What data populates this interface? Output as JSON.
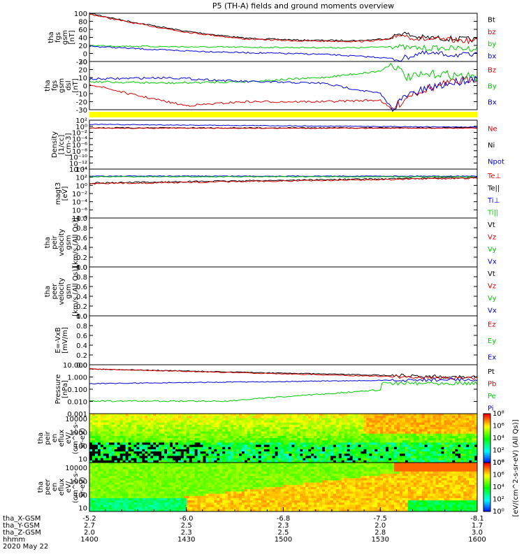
{
  "title": "P5 (TH-A) fields and ground moments overview",
  "colors": {
    "black": "#000000",
    "red": "#dd0000",
    "green": "#00cc00",
    "blue": "#0000dd",
    "yellow": "#ffff00"
  },
  "panels": [
    {
      "id": "fgs-gsm",
      "ylabel": [
        "tha",
        "fgs",
        "gsm",
        "[nT]"
      ],
      "ylim": [
        -20,
        100
      ],
      "ticks": [
        "100",
        "80",
        "60",
        "40",
        "20",
        "0",
        "-20"
      ],
      "legend": [
        {
          "text": "Bt",
          "color": "#000000"
        },
        {
          "text": "bz",
          "color": "#dd0000"
        },
        {
          "text": "by",
          "color": "#00cc00"
        },
        {
          "text": "bx",
          "color": "#0000dd"
        }
      ]
    },
    {
      "id": "fgs-gsm-dsl",
      "ylabel": [
        "tha",
        "fgs",
        "gsm",
        "dsl",
        "[nT]"
      ],
      "ylim": [
        -30,
        30
      ],
      "ticks": [
        "30",
        "20",
        "10",
        "0",
        "-10",
        "-20",
        "-30"
      ],
      "legend": [
        {
          "text": "Bz",
          "color": "#dd0000"
        },
        {
          "text": "By",
          "color": "#00cc00"
        },
        {
          "text": "Bx",
          "color": "#0000dd"
        }
      ]
    },
    {
      "id": "density",
      "ylabel": [
        "Density",
        "[1/cc]",
        "[cm-3]"
      ],
      "ticks": [
        "10²",
        "10⁰",
        "10⁻²",
        "10⁻⁴",
        "10⁻⁶",
        "10⁻⁸",
        "10⁻¹⁰",
        "10⁻¹²",
        "10⁻¹⁴"
      ],
      "legend": [
        {
          "text": "Ne",
          "color": "#dd0000"
        },
        {
          "text": "Ni",
          "color": "#000000"
        },
        {
          "text": "Npot",
          "color": "#0000dd"
        }
      ]
    },
    {
      "id": "temperature",
      "ylabel": [
        "magt3",
        "[eV]"
      ],
      "ticks": [
        "10⁴",
        "10²",
        "10⁰",
        "10⁻²",
        "10⁻⁴",
        "10⁻⁶",
        "10⁻⁸"
      ],
      "legend": [
        {
          "text": "Te⊥",
          "color": "#dd0000"
        },
        {
          "text": "Te||",
          "color": "#000000"
        },
        {
          "text": "Ti⊥",
          "color": "#0000dd"
        },
        {
          "text": "Ti||",
          "color": "#00cc00"
        }
      ]
    },
    {
      "id": "peir-velocity",
      "ylabel": [
        "tha",
        "peir",
        "velocity",
        "gsm",
        "[km/s (All Qs)]"
      ],
      "ylim": [
        0,
        1
      ],
      "ticks": [
        "1.0",
        "0.8",
        "0.6",
        "0.4",
        "0.2",
        "0.0"
      ],
      "legend": [
        {
          "text": "Vt",
          "color": "#000000"
        },
        {
          "text": "Vz",
          "color": "#dd0000"
        },
        {
          "text": "Vy",
          "color": "#00cc00"
        },
        {
          "text": "Vx",
          "color": "#0000dd"
        }
      ]
    },
    {
      "id": "peer-velocity",
      "ylabel": [
        "tha",
        "peer",
        "velocity",
        "gsm",
        "[km/s (All Qs)]"
      ],
      "ylim": [
        0,
        1
      ],
      "ticks": [
        "1.0",
        "0.8",
        "0.6",
        "0.4",
        "0.2",
        "0.0"
      ],
      "legend": [
        {
          "text": "Vt",
          "color": "#000000"
        },
        {
          "text": "Vz",
          "color": "#dd0000"
        },
        {
          "text": "Vy",
          "color": "#00cc00"
        },
        {
          "text": "Vx",
          "color": "#0000dd"
        }
      ]
    },
    {
      "id": "e-field",
      "ylabel": [
        "E=-VxB",
        "[mV/m]"
      ],
      "ylim": [
        0,
        1
      ],
      "ticks": [
        "1.0",
        "0.8",
        "0.6",
        "0.4",
        "0.2",
        "0.0"
      ],
      "legend": [
        {
          "text": "Ez",
          "color": "#dd0000"
        },
        {
          "text": "Ey",
          "color": "#00cc00"
        },
        {
          "text": "Ex",
          "color": "#0000dd"
        }
      ]
    },
    {
      "id": "pressure",
      "ylabel": [
        "Pressure",
        "[nPa]"
      ],
      "ticks": [
        "10.000",
        "1.000",
        "0.100",
        "0.010",
        "0.001"
      ],
      "legend": [
        {
          "text": "Pt",
          "color": "#000000"
        },
        {
          "text": "Pb",
          "color": "#dd0000"
        },
        {
          "text": "Pe",
          "color": "#00cc00"
        },
        {
          "text": "Pi",
          "color": "#0000dd"
        }
      ]
    },
    {
      "id": "peir-en-eflux",
      "ylabel": [
        "tha",
        "peir",
        "en",
        "eflux",
        "eV/",
        "(cm^2-s-",
        "sr-eV)"
      ],
      "ticks": [
        "10000",
        "1000",
        "100",
        "10"
      ],
      "colorbar_ticks": [
        "10⁸",
        "10⁶",
        "10⁴",
        "10²",
        "10⁰"
      ],
      "colorbar_label": "[eV/(cm^2-s-sr-eV) (All Qs)]"
    },
    {
      "id": "peer-en-eflux",
      "ylabel": [
        "tha",
        "peer",
        "en",
        "eflux",
        "eV/",
        "(cm^2-s-",
        "sr-eV)"
      ],
      "ticks": [
        "10000",
        "1000",
        "100",
        "10"
      ],
      "colorbar_ticks": [
        "10⁸",
        "10⁶",
        "10⁴",
        "10²",
        "10⁰"
      ],
      "colorbar_label": "[eV/(cm^2-s-sr-eV) (All Qs)]"
    }
  ],
  "xaxis": {
    "rows": [
      {
        "label": "tha_X-GSM",
        "values": [
          "-5.2",
          "-6.0",
          "-6.8",
          "-7.5",
          "-8.1"
        ]
      },
      {
        "label": "tha_Y-GSM",
        "values": [
          "2.7",
          "2.5",
          "2.3",
          "2.0",
          "1.7"
        ]
      },
      {
        "label": "tha_Z-GSM",
        "values": [
          "2.0",
          "2.3",
          "2.5",
          "2.8",
          "3.0"
        ]
      },
      {
        "label": "hhmm",
        "values": [
          "1400",
          "1430",
          "1500",
          "1530",
          "1600"
        ]
      }
    ],
    "date": "2020 May 22"
  },
  "chart_data": {
    "type": "line",
    "title": "P5 (TH-A) fields and ground moments overview",
    "x": [
      "1400",
      "1430",
      "1500",
      "1530",
      "1600"
    ],
    "xlabel": "hhmm",
    "series": [
      {
        "panel": "fgs-gsm",
        "name": "Bt",
        "points": [
          [
            0,
            100
          ],
          [
            0.1,
            80
          ],
          [
            0.25,
            55
          ],
          [
            0.4,
            38
          ],
          [
            0.55,
            33
          ],
          [
            0.7,
            32
          ],
          [
            0.78,
            38
          ],
          [
            0.8,
            52
          ],
          [
            0.85,
            40
          ],
          [
            1,
            34
          ]
        ]
      },
      {
        "panel": "fgs-gsm",
        "name": "bz",
        "points": [
          [
            0,
            98
          ],
          [
            0.1,
            78
          ],
          [
            0.25,
            53
          ],
          [
            0.4,
            36
          ],
          [
            0.55,
            31
          ],
          [
            0.7,
            30
          ],
          [
            0.78,
            35
          ],
          [
            0.8,
            48
          ],
          [
            0.85,
            36
          ],
          [
            1,
            31
          ]
        ]
      },
      {
        "panel": "fgs-gsm",
        "name": "by",
        "points": [
          [
            0,
            20
          ],
          [
            0.1,
            18
          ],
          [
            0.3,
            16
          ],
          [
            0.5,
            15
          ],
          [
            0.7,
            14
          ],
          [
            0.78,
            18
          ],
          [
            0.82,
            14
          ],
          [
            1,
            12
          ]
        ]
      },
      {
        "panel": "fgs-gsm",
        "name": "bx",
        "points": [
          [
            0,
            18
          ],
          [
            0.2,
            8
          ],
          [
            0.4,
            2
          ],
          [
            0.6,
            -2
          ],
          [
            0.75,
            -10
          ],
          [
            0.8,
            -15
          ],
          [
            0.85,
            0
          ],
          [
            1,
            -5
          ]
        ]
      },
      {
        "panel": "fgs-gsm-dsl",
        "name": "Bz",
        "points": [
          [
            0,
            2
          ],
          [
            0.1,
            -10
          ],
          [
            0.25,
            -25
          ],
          [
            0.4,
            -20
          ],
          [
            0.6,
            -20
          ],
          [
            0.75,
            -18
          ],
          [
            0.78,
            -30
          ],
          [
            0.83,
            -10
          ],
          [
            0.9,
            0
          ],
          [
            1,
            10
          ]
        ]
      },
      {
        "panel": "fgs-gsm-dsl",
        "name": "By",
        "points": [
          [
            0,
            5
          ],
          [
            0.2,
            3
          ],
          [
            0.4,
            5
          ],
          [
            0.6,
            10
          ],
          [
            0.75,
            18
          ],
          [
            0.78,
            28
          ],
          [
            0.82,
            10
          ],
          [
            0.9,
            15
          ],
          [
            1,
            10
          ]
        ]
      },
      {
        "panel": "fgs-gsm-dsl",
        "name": "Bx",
        "points": [
          [
            0,
            8
          ],
          [
            0.2,
            10
          ],
          [
            0.4,
            5
          ],
          [
            0.6,
            3
          ],
          [
            0.75,
            -10
          ],
          [
            0.78,
            -28
          ],
          [
            0.82,
            -12
          ],
          [
            0.9,
            0
          ],
          [
            1,
            10
          ]
        ]
      }
    ]
  }
}
